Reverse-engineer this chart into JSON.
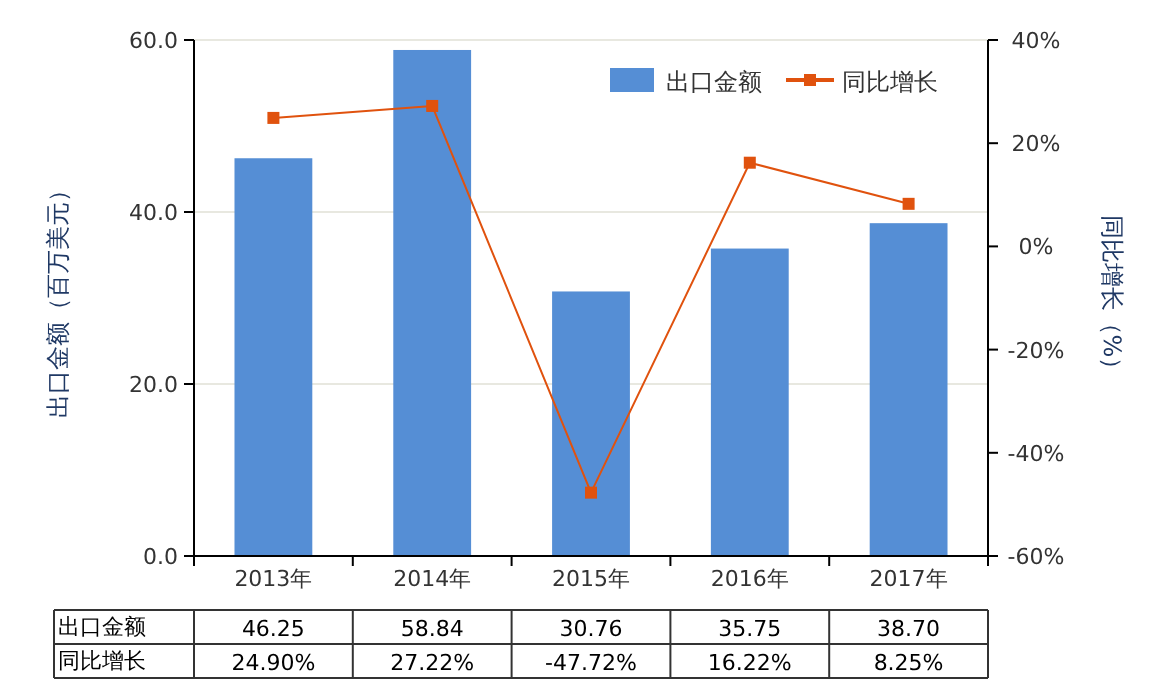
{
  "chart_data": {
    "type": "bar",
    "categories": [
      "2013年",
      "2014年",
      "2015年",
      "2016年",
      "2017年"
    ],
    "ylabel": "出口金额（百万美元）",
    "y2label": "同比增长（%）",
    "ylim": [
      0,
      60
    ],
    "yticks": [
      {
        "value": 0,
        "label": "0.0"
      },
      {
        "value": 20,
        "label": "20.0"
      },
      {
        "value": 40,
        "label": "40.0"
      },
      {
        "value": 60,
        "label": "60.0"
      }
    ],
    "y2lim": [
      -60,
      40
    ],
    "y2ticks": [
      {
        "value": -60,
        "label": "-60%"
      },
      {
        "value": -40,
        "label": "-40%"
      },
      {
        "value": -20,
        "label": "-20%"
      },
      {
        "value": 0,
        "label": "0%"
      },
      {
        "value": 20,
        "label": "20%"
      },
      {
        "value": 40,
        "label": "40%"
      }
    ],
    "grid": "y",
    "legend": "top right",
    "series": [
      {
        "name": "出口金额",
        "color": "#558ed5",
        "values": [
          46.25,
          58.84,
          30.76,
          35.75,
          38.7
        ],
        "value_labels": [
          "46.25",
          "58.84",
          "30.76",
          "35.75",
          "38.70"
        ]
      },
      {
        "name": "同比增长",
        "type": "line",
        "axis": "y2",
        "color": "#e0520e",
        "marker": "square",
        "line_style": "solid",
        "values": [
          24.9,
          27.22,
          -47.72,
          16.22,
          8.25
        ],
        "value_labels": [
          "24.90%",
          "27.22%",
          "-47.72%",
          "16.22%",
          "8.25%"
        ]
      }
    ]
  }
}
